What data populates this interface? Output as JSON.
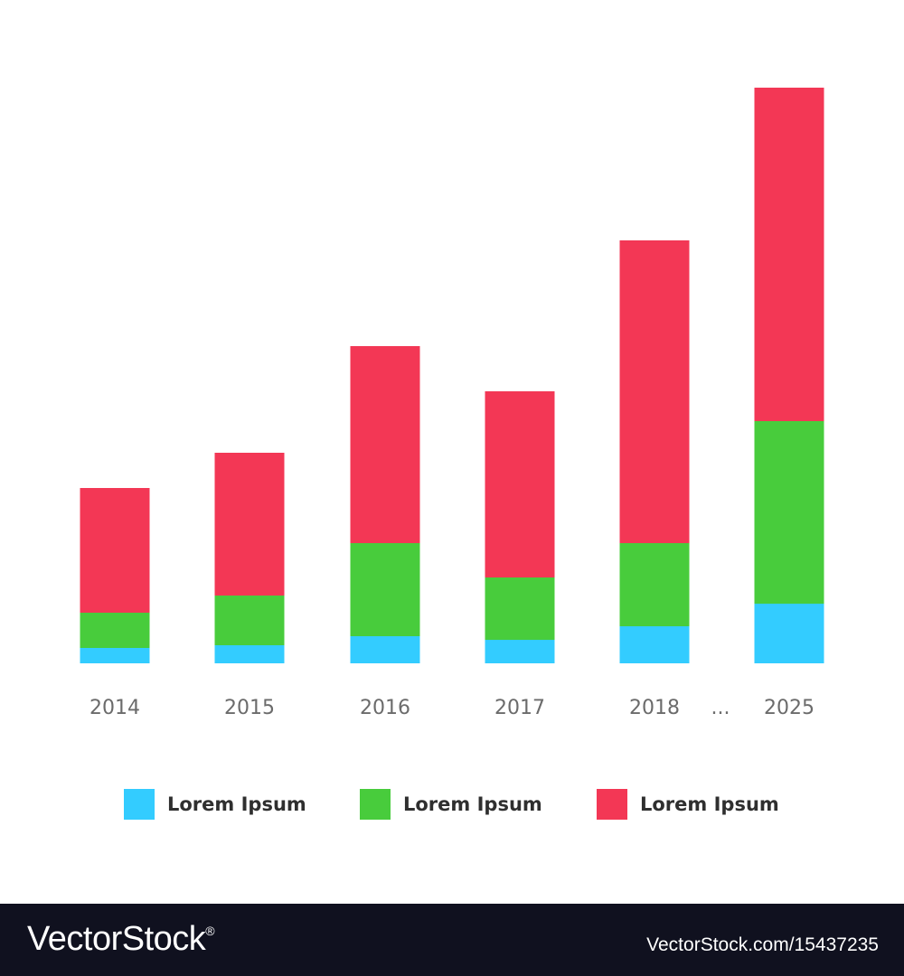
{
  "chart_data": {
    "type": "bar",
    "stacked": true,
    "categories": [
      "2014",
      "2015",
      "2016",
      "2017",
      "2018",
      "2025"
    ],
    "ellipsis": "...",
    "series": [
      {
        "color": "#33ccff",
        "values": [
          17,
          20,
          30,
          26,
          41,
          66
        ]
      },
      {
        "color": "#48cc3c",
        "values": [
          39,
          55,
          103,
          69,
          92,
          202
        ]
      },
      {
        "color": "#f33755",
        "values": [
          138,
          158,
          218,
          206,
          335,
          369
        ]
      }
    ],
    "ylim": [
      0,
      640
    ],
    "grid": false,
    "legend": {
      "position": "bottom",
      "items": [
        {
          "label": "Lorem Ipsum",
          "color": "#33ccff"
        },
        {
          "label": "Lorem Ipsum",
          "color": "#48cc3c"
        },
        {
          "label": "Lorem Ipsum",
          "color": "#f33755"
        }
      ]
    }
  },
  "footer": {
    "logo": "VectorStock",
    "logo_mark": "®",
    "image_id": "VectorStock.com/15437235"
  }
}
